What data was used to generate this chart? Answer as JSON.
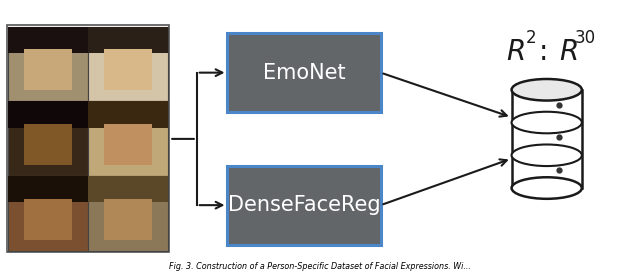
{
  "caption": "Fig. 3. Construction of a Person-Specific Dataset of Facial Expressions. Wi...",
  "emonet_label": "EmoNet",
  "densefacereg_label": "DenseFaceReg",
  "box_color": "#636669",
  "box_edge_color": "#4a86c8",
  "box_text_color": "#ffffff",
  "arrow_color": "#1a1a1a",
  "background_color": "#ffffff",
  "face_colors": [
    [
      "#6a5a3a",
      "#c8b89a"
    ],
    [
      "#3a2a1a",
      "#b08050"
    ],
    [
      "#5a3a20",
      "#9a7850"
    ]
  ],
  "face_sub_colors": [
    [
      "#8a7040",
      "#e0d0b0"
    ],
    [
      "#5a4030",
      "#d09060"
    ],
    [
      "#7a5030",
      "#c0a070"
    ]
  ],
  "db_body_color": "#ffffff",
  "db_top_color": "#e8e8e8",
  "db_line_color": "#1a1a1a",
  "r_label_color": "#1a1a1a",
  "figsize": [
    6.4,
    2.74
  ],
  "dpi": 100,
  "xlim": [
    0,
    10
  ],
  "ylim": [
    0,
    4.3
  ]
}
